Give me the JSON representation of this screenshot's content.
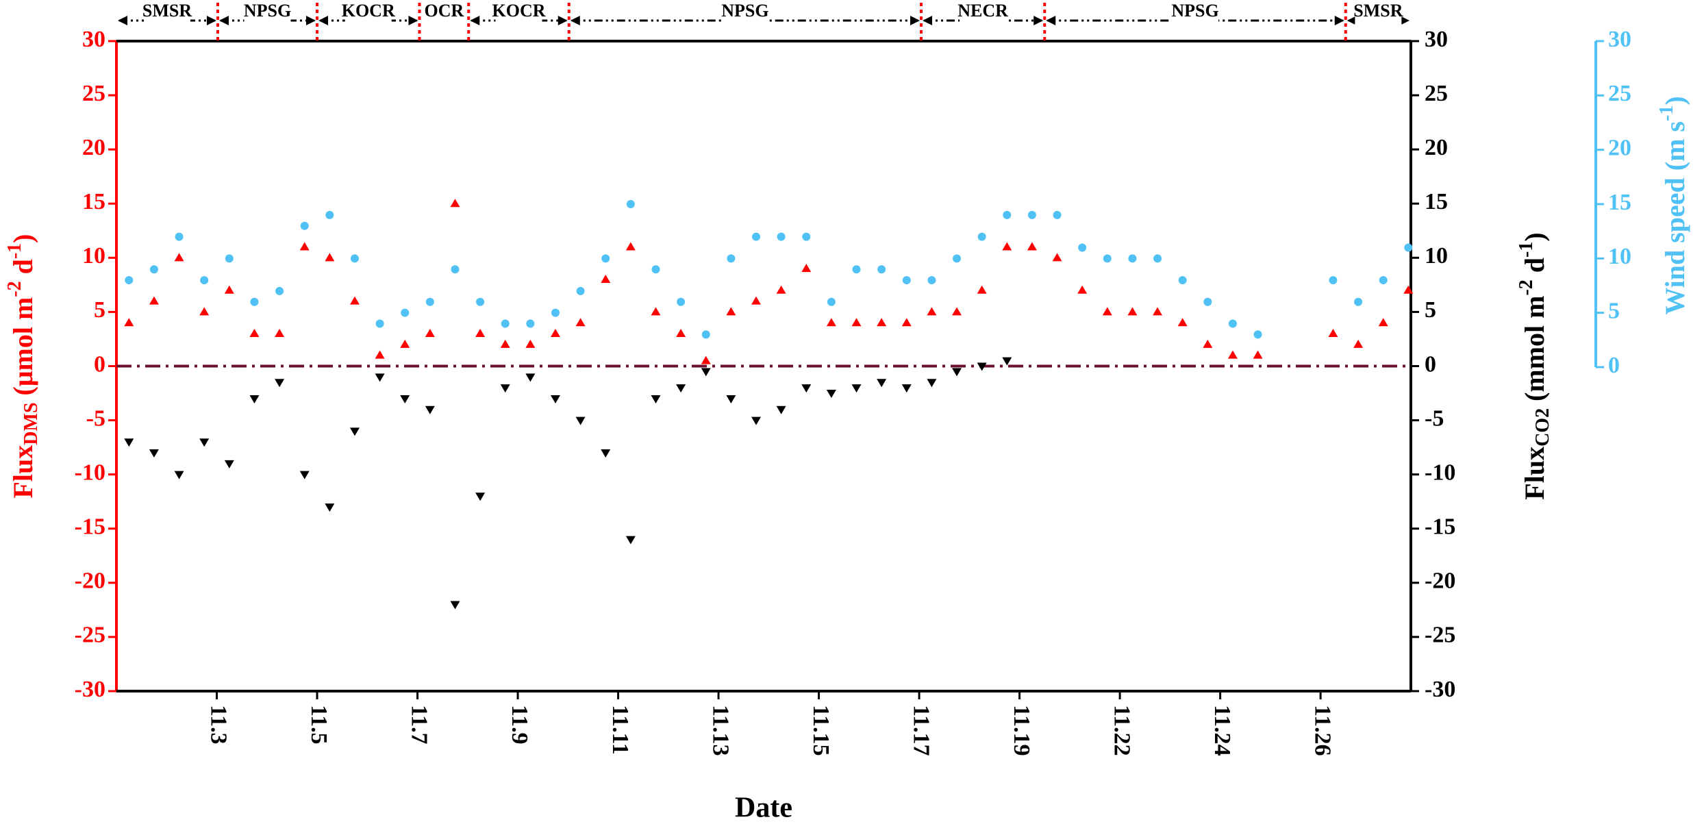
{
  "chart_data": {
    "type": "scatter",
    "xlabel": "Date",
    "ylabel_parts": [
      {
        "text": "Flux",
        "shift": "base"
      },
      {
        "text": "DMS",
        "shift": "sub"
      },
      {
        "text": " (μmol m",
        "shift": "base"
      },
      {
        "text": "-2",
        "shift": "sup"
      },
      {
        "text": " d",
        "shift": "base"
      },
      {
        "text": "-1",
        "shift": "sup"
      },
      {
        "text": ")",
        "shift": "base"
      }
    ],
    "y2label_parts": [
      {
        "text": "Flux",
        "shift": "base"
      },
      {
        "text": "CO2",
        "shift": "sub"
      },
      {
        "text": " (mmol m",
        "shift": "base"
      },
      {
        "text": "-2",
        "shift": "sup"
      },
      {
        "text": " d",
        "shift": "base"
      },
      {
        "text": "-1",
        "shift": "sup"
      },
      {
        "text": ")",
        "shift": "base"
      }
    ],
    "y3label_parts": [
      {
        "text": "Wind speed (m s",
        "shift": "base"
      },
      {
        "text": "-1",
        "shift": "sup"
      },
      {
        "text": ")",
        "shift": "base"
      }
    ],
    "xlim": [
      1,
      26.8
    ],
    "xticks": [
      {
        "value": 3,
        "label": "11.3"
      },
      {
        "value": 5,
        "label": "11.5"
      },
      {
        "value": 7,
        "label": "11.7"
      },
      {
        "value": 9,
        "label": "11.9"
      },
      {
        "value": 11,
        "label": "11.11"
      },
      {
        "value": 13,
        "label": "11.13"
      },
      {
        "value": 15,
        "label": "11.15"
      },
      {
        "value": 17,
        "label": "11.17"
      },
      {
        "value": 19,
        "label": "11.19"
      },
      {
        "value": 21,
        "label": "11.22"
      },
      {
        "value": 23,
        "label": "11.24"
      },
      {
        "value": 25,
        "label": "11.26"
      }
    ],
    "ylim": [
      -30,
      30
    ],
    "yticks": [
      -30,
      -25,
      -20,
      -15,
      -10,
      -5,
      0,
      5,
      10,
      15,
      20,
      25,
      30
    ],
    "y2lim": [
      -30,
      30
    ],
    "y2ticks": [
      -30,
      -25,
      -20,
      -15,
      -10,
      -5,
      0,
      5,
      10,
      15,
      20,
      25,
      30
    ],
    "y3lim": [
      0,
      30
    ],
    "y3ticks": [
      0,
      5,
      10,
      15,
      20,
      25,
      30
    ],
    "hline": {
      "value": 0,
      "color": "#6b1030"
    },
    "regions": [
      {
        "name": "SMSR",
        "start": 1,
        "end": 3.02
      },
      {
        "name": "NPSG",
        "start": 3.02,
        "end": 5
      },
      {
        "name": "KOCR",
        "start": 5,
        "end": 7.04
      },
      {
        "name": "OCR",
        "start": 7.04,
        "end": 8.02
      },
      {
        "name": "KOCR",
        "start": 8.02,
        "end": 10.02
      },
      {
        "name": "NPSG",
        "start": 10.02,
        "end": 17.04
      },
      {
        "name": "NECR",
        "start": 17.04,
        "end": 19.5
      },
      {
        "name": "NPSG",
        "start": 19.5,
        "end": 25.5
      },
      {
        "name": "SMSR",
        "start": 25.5,
        "end": 26.8
      }
    ],
    "x": [
      1.25,
      1.75,
      2.25,
      2.75,
      3.25,
      3.75,
      4.25,
      4.75,
      5.25,
      5.75,
      6.25,
      6.75,
      7.25,
      7.75,
      8.25,
      8.75,
      9.25,
      9.75,
      10.25,
      10.75,
      11.25,
      11.75,
      12.25,
      12.75,
      13.25,
      13.75,
      14.25,
      14.75,
      15.25,
      15.75,
      16.25,
      16.75,
      17.25,
      17.75,
      18.25,
      18.75,
      19.25,
      19.75,
      20.25,
      20.75,
      21.25,
      21.75,
      22.25,
      22.75,
      23.25,
      23.75,
      24.25,
      24.75,
      25.25,
      25.75,
      26.25,
      26.75
    ],
    "series": [
      {
        "name": "DMS",
        "color": "#ff0000",
        "marker": "triangle-up",
        "axis": "y",
        "values": [
          4,
          6,
          10,
          5,
          7,
          3,
          3,
          11,
          10,
          6,
          1,
          2,
          3,
          15,
          3,
          2,
          2,
          3,
          4,
          8,
          11,
          5,
          3,
          0.5,
          5,
          6,
          7,
          9,
          4,
          4,
          4,
          4,
          5,
          5,
          7,
          11,
          11,
          10,
          7,
          5,
          5,
          5,
          4,
          2,
          1,
          1,
          null,
          null,
          3,
          2,
          4,
          7
        ]
      },
      {
        "name": "CO2",
        "color": "#000000",
        "marker": "triangle-down",
        "axis": "y2",
        "values": [
          -7,
          -8,
          -10,
          -7,
          -9,
          -3,
          -1.5,
          -10,
          -13,
          -6,
          -1,
          -3,
          -4,
          -22,
          -12,
          -2,
          -1,
          -3,
          -5,
          -8,
          -16,
          -3,
          -2,
          -0.5,
          -3,
          -5,
          -4,
          -2,
          -2.5,
          -2,
          -1.5,
          -2,
          -1.5,
          -0.5,
          0,
          0.5,
          null,
          null,
          null,
          null,
          null,
          null,
          null,
          null,
          null,
          null,
          null,
          null,
          null,
          null,
          null,
          null
        ]
      },
      {
        "name": "Wind speed",
        "color": "#4fc1f5",
        "marker": "circle",
        "axis": "y3",
        "values": [
          8,
          9,
          12,
          8,
          10,
          6,
          7,
          13,
          14,
          10,
          4,
          5,
          6,
          9,
          6,
          4,
          4,
          5,
          7,
          10,
          15,
          9,
          6,
          3,
          10,
          12,
          12,
          12,
          6,
          9,
          9,
          8,
          8,
          10,
          12,
          14,
          14,
          14,
          11,
          10,
          10,
          10,
          8,
          6,
          4,
          3,
          null,
          null,
          8,
          6,
          8,
          11
        ]
      }
    ]
  }
}
